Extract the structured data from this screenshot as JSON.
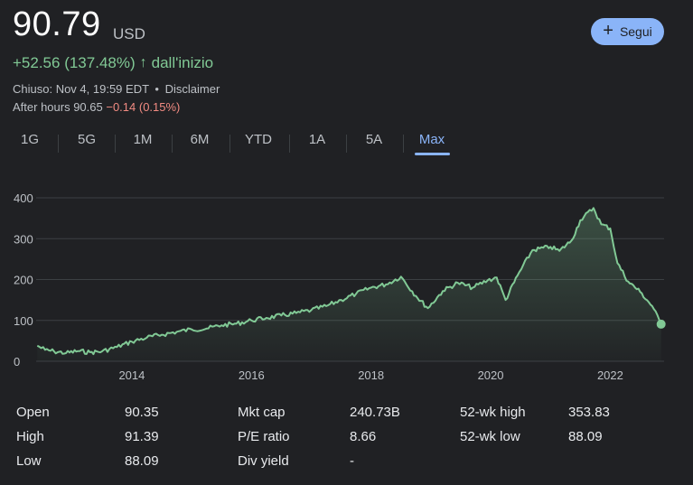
{
  "quote": {
    "price": "90.79",
    "currency": "USD",
    "change": "+52.56 (137.48%)",
    "change_arrow": "↑",
    "change_period": "dall'inizio",
    "closed_text": "Chiuso: Nov 4, 19:59 EDT",
    "separator": "•",
    "disclaimer": "Disclaimer",
    "after_hours_label": "After hours 90.65",
    "after_hours_change": "−0.14 (0.15%)"
  },
  "follow_button": {
    "label": "Segui",
    "icon": "plus-icon"
  },
  "tabs": [
    "1G",
    "5G",
    "1M",
    "6M",
    "YTD",
    "1A",
    "5A",
    "Max"
  ],
  "active_tab": "Max",
  "colors": {
    "positive": "#81c995",
    "negative": "#f28b82",
    "accent": "#8ab4f8",
    "background": "#202124"
  },
  "chart_data": {
    "type": "area",
    "y_ticks": [
      "400",
      "300",
      "200",
      "100",
      "0"
    ],
    "x_ticks": [
      "2014",
      "2016",
      "2018",
      "2020",
      "2022"
    ],
    "ylim": [
      0,
      400
    ],
    "xlim": [
      2012.4,
      2022.9
    ],
    "grid": true,
    "series": [
      {
        "color": "#81c995",
        "points": [
          [
            2012.42,
            38
          ],
          [
            2012.55,
            28
          ],
          [
            2012.7,
            24
          ],
          [
            2012.9,
            20
          ],
          [
            2013.1,
            25
          ],
          [
            2013.3,
            22
          ],
          [
            2013.5,
            24
          ],
          [
            2013.75,
            35
          ],
          [
            2014.0,
            48
          ],
          [
            2014.25,
            58
          ],
          [
            2014.5,
            65
          ],
          [
            2014.75,
            72
          ],
          [
            2015.0,
            78
          ],
          [
            2015.25,
            80
          ],
          [
            2015.5,
            88
          ],
          [
            2015.75,
            92
          ],
          [
            2016.0,
            100
          ],
          [
            2016.25,
            106
          ],
          [
            2016.5,
            112
          ],
          [
            2016.75,
            118
          ],
          [
            2017.0,
            125
          ],
          [
            2017.25,
            135
          ],
          [
            2017.5,
            150
          ],
          [
            2017.75,
            165
          ],
          [
            2018.0,
            180
          ],
          [
            2018.25,
            188
          ],
          [
            2018.5,
            207
          ],
          [
            2018.75,
            160
          ],
          [
            2018.95,
            130
          ],
          [
            2019.2,
            172
          ],
          [
            2019.45,
            192
          ],
          [
            2019.7,
            180
          ],
          [
            2019.95,
            198
          ],
          [
            2020.1,
            205
          ],
          [
            2020.25,
            150
          ],
          [
            2020.45,
            210
          ],
          [
            2020.7,
            272
          ],
          [
            2021.0,
            280
          ],
          [
            2021.15,
            270
          ],
          [
            2021.35,
            295
          ],
          [
            2021.5,
            345
          ],
          [
            2021.72,
            375
          ],
          [
            2021.85,
            335
          ],
          [
            2022.0,
            325
          ],
          [
            2022.12,
            240
          ],
          [
            2022.3,
            195
          ],
          [
            2022.5,
            170
          ],
          [
            2022.7,
            135
          ],
          [
            2022.85,
            90.79
          ]
        ]
      }
    ]
  },
  "stats": {
    "rows": [
      [
        {
          "label": "Open",
          "value": "90.35"
        },
        {
          "label": "Mkt cap",
          "value": "240.73B"
        },
        {
          "label": "52-wk high",
          "value": "353.83"
        }
      ],
      [
        {
          "label": "High",
          "value": "91.39"
        },
        {
          "label": "P/E ratio",
          "value": "8.66"
        },
        {
          "label": "52-wk low",
          "value": "88.09"
        }
      ],
      [
        {
          "label": "Low",
          "value": "88.09"
        },
        {
          "label": "Div yield",
          "value": "-"
        }
      ]
    ]
  }
}
